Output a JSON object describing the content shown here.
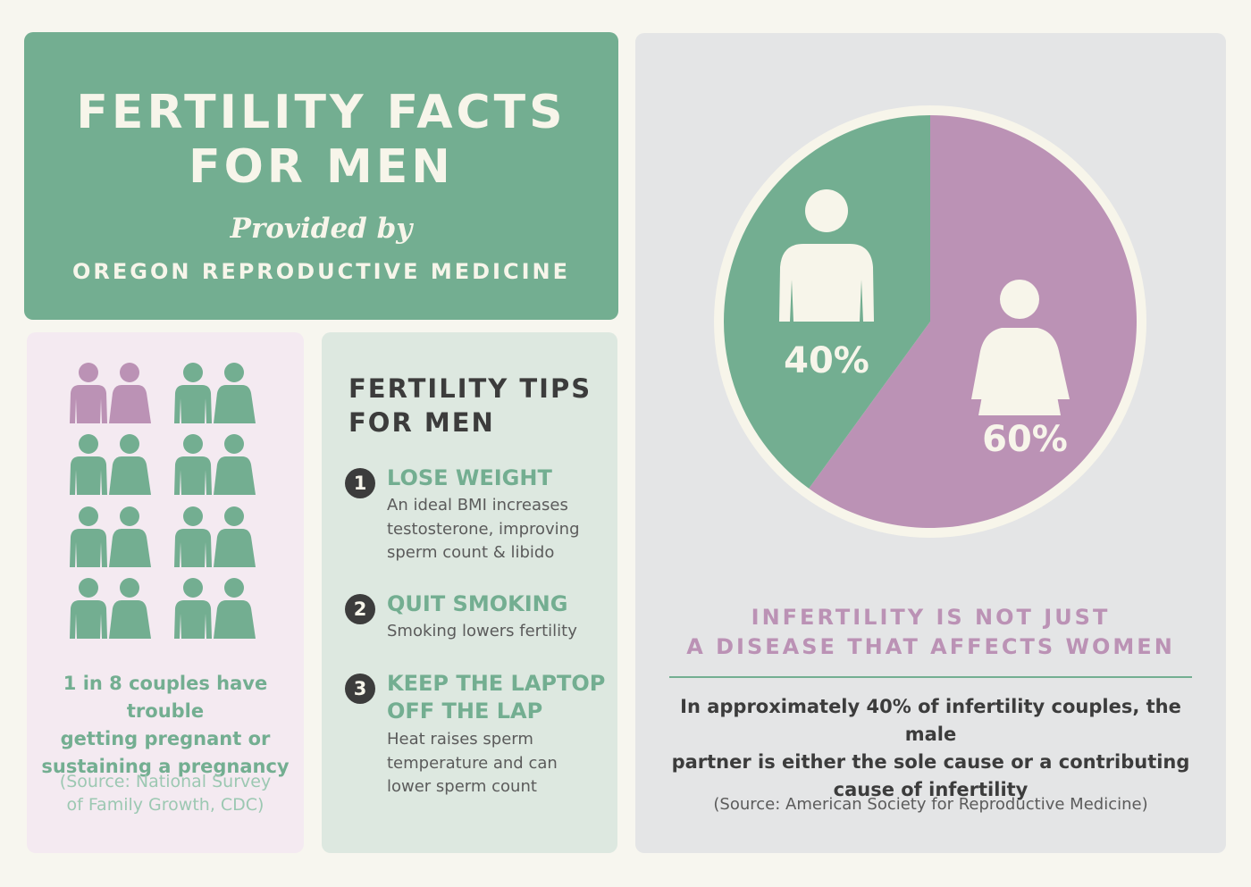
{
  "header": {
    "title_line1": "FERTILITY FACTS",
    "title_line2": "FOR MEN",
    "provided_by": "Provided by",
    "organization": "OREGON REPRODUCTIVE MEDICINE"
  },
  "couples": {
    "total_couples": 8,
    "affected_couples": 1,
    "text_line1": "1 in 8 couples have trouble",
    "text_line2": "getting pregnant or",
    "text_line3": "sustaining a pregnancy",
    "source_line1": "(Source: National Survey",
    "source_line2": "of Family Growth, CDC)"
  },
  "tips": {
    "heading_line1": "FERTILITY TIPS",
    "heading_line2": "FOR MEN",
    "items": [
      {
        "number": "1",
        "title_lines": [
          "LOSE WEIGHT"
        ],
        "body_lines": [
          "An ideal BMI increases",
          "testosterone, improving",
          "sperm count & libido"
        ]
      },
      {
        "number": "2",
        "title_lines": [
          "QUIT SMOKING"
        ],
        "body_lines": [
          "Smoking lowers fertility"
        ]
      },
      {
        "number": "3",
        "title_lines": [
          "KEEP THE LAPTOP",
          "OFF THE LAP"
        ],
        "body_lines": [
          "Heat raises sperm",
          "temperature and can",
          "lower sperm count"
        ]
      }
    ]
  },
  "chart_data": {
    "type": "pie",
    "slices": [
      {
        "label": "40%",
        "value": 40,
        "color": "#73ae91",
        "icon": "man-icon"
      },
      {
        "label": "60%",
        "value": 60,
        "color": "#bb92b5",
        "icon": "woman-icon"
      }
    ],
    "headline_line1": "INFERTILITY IS NOT JUST",
    "headline_line2": "A DISEASE THAT AFFECTS WOMEN",
    "body_line1": "In approximately 40% of infertility couples, the male",
    "body_line2": "partner is either the sole cause or a contributing",
    "body_line3": "cause of infertility",
    "source": "(Source: American Society for Reproductive Medicine)"
  },
  "colors": {
    "green": "#73ae91",
    "purple": "#bb92b5",
    "cream": "#f7f5ea",
    "dark": "#3c3c3c"
  }
}
